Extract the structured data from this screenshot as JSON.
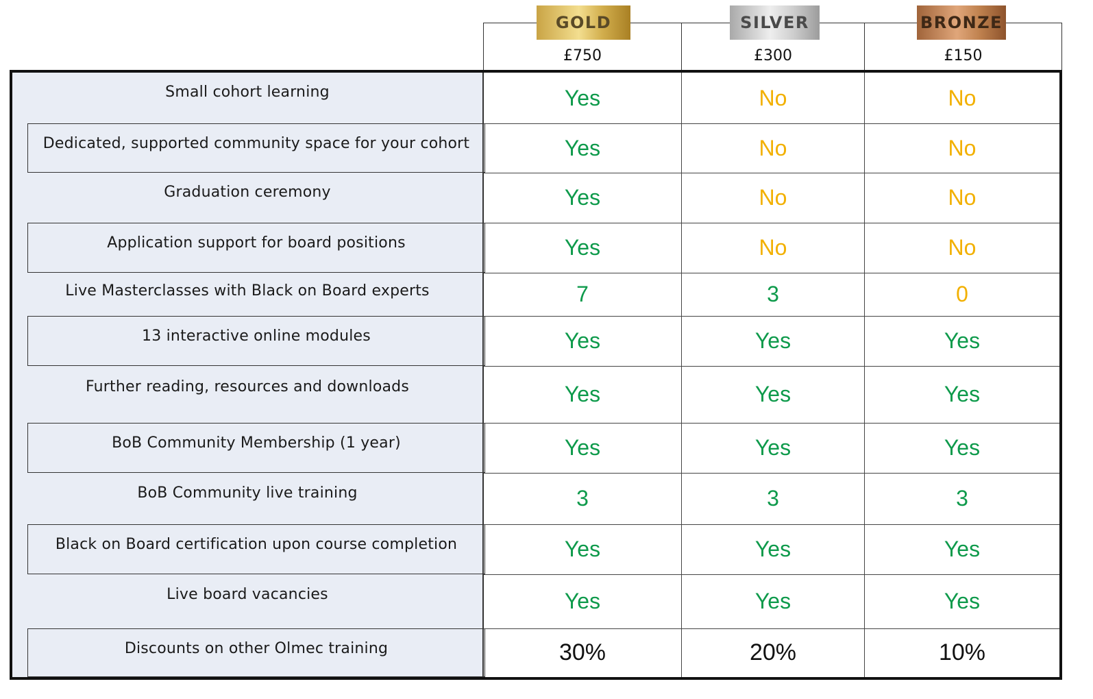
{
  "tiers": [
    {
      "name": "GOLD",
      "price": "£750"
    },
    {
      "name": "SILVER",
      "price": "£300"
    },
    {
      "name": "BRONZE",
      "price": "£150"
    }
  ],
  "rows": [
    {
      "feature": "Small cohort learning",
      "values": [
        "Yes",
        "No",
        "No"
      ]
    },
    {
      "feature": "Dedicated, supported community space for your cohort",
      "values": [
        "Yes",
        "No",
        "No"
      ]
    },
    {
      "feature": "Graduation ceremony",
      "values": [
        "Yes",
        "No",
        "No"
      ]
    },
    {
      "feature": "Application support for board positions",
      "values": [
        "Yes",
        "No",
        "No"
      ]
    },
    {
      "feature": "Live Masterclasses with Black on Board experts",
      "values": [
        "7",
        "3",
        "0"
      ]
    },
    {
      "feature": "13 interactive online modules",
      "values": [
        "Yes",
        "Yes",
        "Yes"
      ]
    },
    {
      "feature": "Further reading, resources and downloads",
      "values": [
        "Yes",
        "Yes",
        "Yes"
      ]
    },
    {
      "feature": "BoB Community Membership (1 year)",
      "values": [
        "Yes",
        "Yes",
        "Yes"
      ]
    },
    {
      "feature": "BoB Community live training",
      "values": [
        "3",
        "3",
        "3"
      ]
    },
    {
      "feature": "Black on Board certification upon course completion",
      "values": [
        "Yes",
        "Yes",
        "Yes"
      ]
    },
    {
      "feature": "Live board vacancies",
      "values": [
        "Yes",
        "Yes",
        "Yes"
      ]
    },
    {
      "feature": "Discounts on other Olmec training",
      "values": [
        "30%",
        "20%",
        "10%"
      ]
    }
  ],
  "colors": {
    "yes": "#0e9a4b",
    "no": "#f2b000",
    "zero": "#f2b000",
    "count": "#0e9a4b",
    "plain": "#111111",
    "feature_bg": "#e9edf5"
  }
}
